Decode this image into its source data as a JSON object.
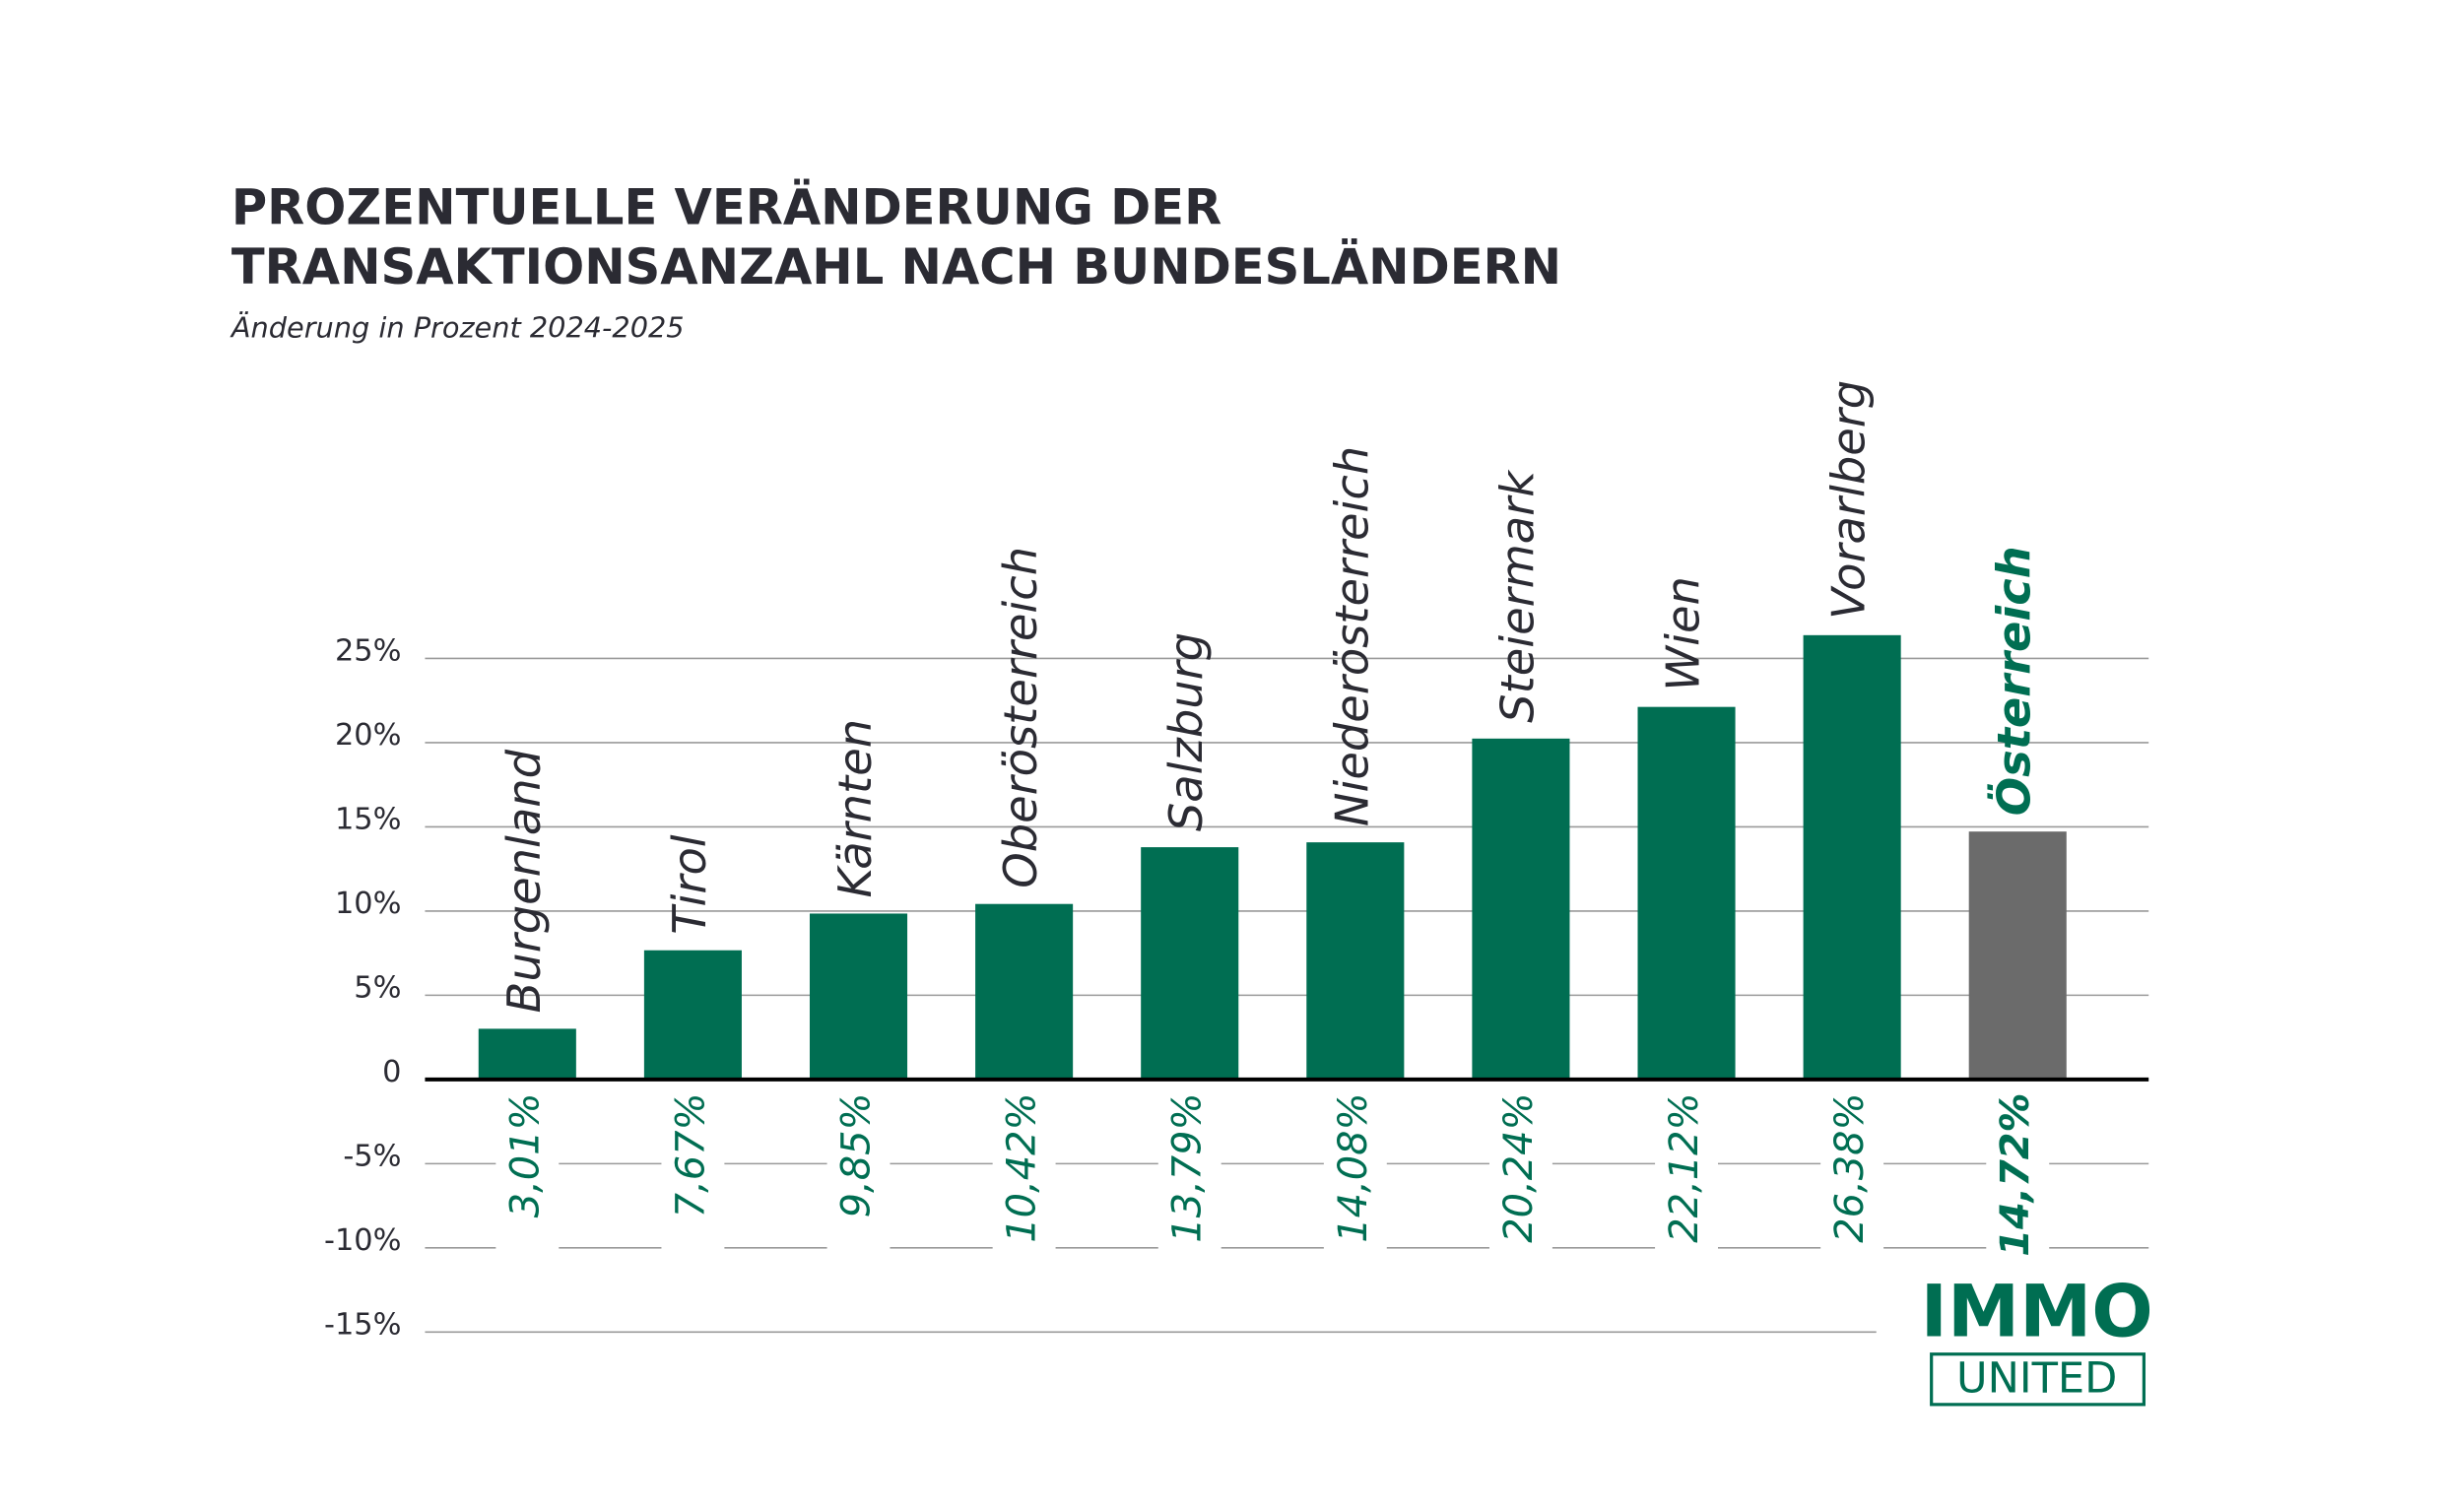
{
  "chart_data": {
    "type": "bar",
    "title": [
      "PROZENTUELLE VERÄNDERUNG DER",
      "TRANSAKTIONSANZAHL NACH BUNDESLÄNDERN"
    ],
    "subtitle": "Änderung in Prozent 2024-2025",
    "categories": [
      "Burgenland",
      "Tirol",
      "Kärnten",
      "Oberösterreich",
      "Salzburg",
      "Niederösterreich",
      "Steiermark",
      "Wien",
      "Vorarlberg",
      "Österreich"
    ],
    "values": [
      3.01,
      7.67,
      9.85,
      10.42,
      13.79,
      14.08,
      20.24,
      22.12,
      26.38,
      14.72
    ],
    "value_labels": [
      "3,01%",
      "7,67%",
      "9,85%",
      "10,42%",
      "13,79%",
      "14,08%",
      "20,24%",
      "22,12%",
      "26,38%",
      "14,72%"
    ],
    "colors": [
      "#006e52",
      "#006e52",
      "#006e52",
      "#006e52",
      "#006e52",
      "#006e52",
      "#006e52",
      "#006e52",
      "#006e52",
      "#6b6b6b"
    ],
    "ylim": [
      -15,
      25
    ],
    "yticks": [
      {
        "value": -15,
        "label": "-15%"
      },
      {
        "value": -10,
        "label": "-10%"
      },
      {
        "value": -5,
        "label": "-5%"
      },
      0,
      {
        "value": 5,
        "label": "5%"
      },
      {
        "value": 10,
        "label": "10%"
      },
      {
        "value": 15,
        "label": "15%"
      },
      {
        "value": 20,
        "label": "20%"
      },
      {
        "value": 25,
        "label": "25%"
      }
    ],
    "grid": true
  },
  "logo": {
    "top": "IMMO",
    "bottom": "UNITED"
  }
}
